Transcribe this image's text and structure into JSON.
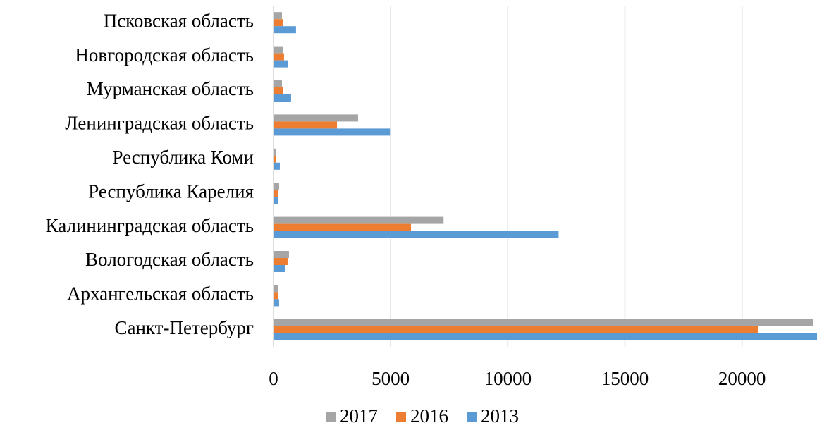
{
  "chart_data": {
    "type": "hbar",
    "categories": [
      "Санкт-Петербург",
      "Архангельская область",
      "Вологодская область",
      "Калининградская область",
      "Республика Карелия",
      "Республика Коми",
      "Ленинградская область",
      "Мурманская область",
      "Новгородская область",
      "Псковская область"
    ],
    "series": [
      {
        "name": "2017",
        "color": "#a5a5a5",
        "values": [
          23040,
          180,
          660,
          7260,
          240,
          120,
          3610,
          360,
          390,
          360
        ]
      },
      {
        "name": "2016",
        "color": "#ed7d31",
        "values": [
          20690,
          210,
          600,
          5870,
          180,
          90,
          2710,
          400,
          450,
          390
        ]
      },
      {
        "name": "2013",
        "color": "#5b9bd5",
        "values": [
          23300,
          240,
          510,
          12170,
          210,
          270,
          4970,
          750,
          630,
          960
        ]
      }
    ],
    "xlim": [
      0,
      23200
    ],
    "xticks": [
      0,
      5000,
      10000,
      15000,
      20000
    ],
    "grid": true,
    "legend": "bottom"
  }
}
